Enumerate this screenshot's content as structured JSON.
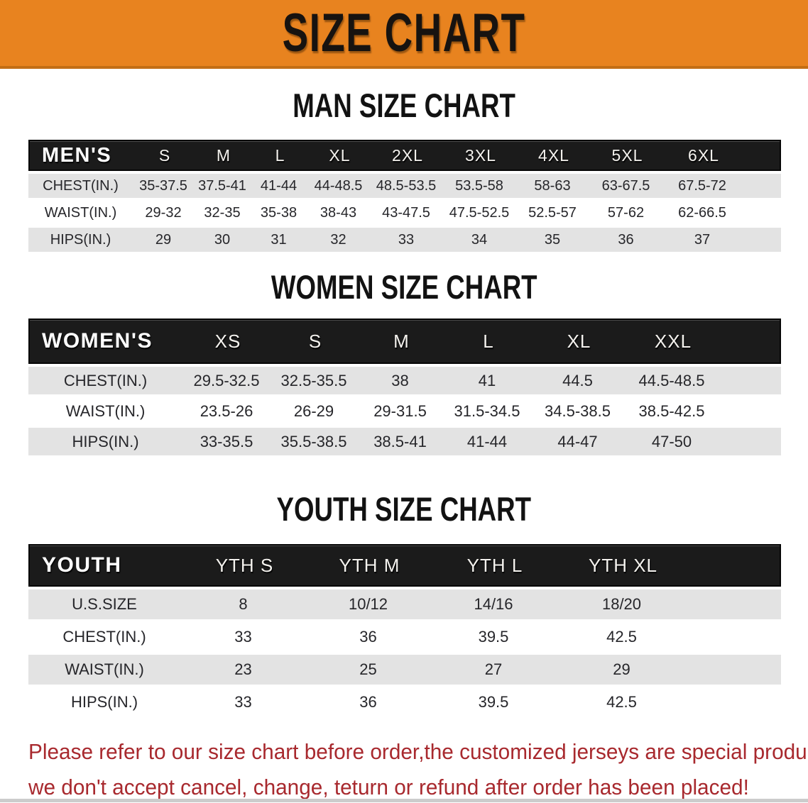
{
  "banner": {
    "title": "SIZE CHART"
  },
  "colors": {
    "banner_bg": "#E8831F",
    "banner_edge": "#C36E15",
    "header_bar": "#1B1B1B",
    "row_gray": "#E3E3E3",
    "note_red": "#A8292E"
  },
  "sections": [
    {
      "title": "MAN SIZE CHART",
      "header_label": "MEN'S",
      "columns": [
        "S",
        "M",
        "L",
        "XL",
        "2XL",
        "3XL",
        "4XL",
        "5XL",
        "6XL"
      ],
      "rows": [
        {
          "label": "CHEST(IN.)",
          "values": [
            "35-37.5",
            "37.5-41",
            "41-44",
            "44-48.5",
            "48.5-53.5",
            "53.5-58",
            "58-63",
            "63-67.5",
            "67.5-72"
          ]
        },
        {
          "label": "WAIST(IN.)",
          "values": [
            "29-32",
            "32-35",
            "35-38",
            "38-43",
            "43-47.5",
            "47.5-52.5",
            "52.5-57",
            "57-62",
            "62-66.5"
          ]
        },
        {
          "label": "HIPS(IN.)",
          "values": [
            "29",
            "30",
            "31",
            "32",
            "33",
            "34",
            "35",
            "36",
            "37"
          ]
        }
      ]
    },
    {
      "title": "WOMEN SIZE CHART",
      "header_label": "WOMEN'S",
      "columns": [
        "XS",
        "S",
        "M",
        "L",
        "XL",
        "XXL"
      ],
      "rows": [
        {
          "label": "CHEST(IN.)",
          "values": [
            "29.5-32.5",
            "32.5-35.5",
            "38",
            "41",
            "44.5",
            "44.5-48.5"
          ]
        },
        {
          "label": "WAIST(IN.)",
          "values": [
            "23.5-26",
            "26-29",
            "29-31.5",
            "31.5-34.5",
            "34.5-38.5",
            "38.5-42.5"
          ]
        },
        {
          "label": "HIPS(IN.)",
          "values": [
            "33-35.5",
            "35.5-38.5",
            "38.5-41",
            "41-44",
            "44-47",
            "47-50"
          ]
        }
      ]
    },
    {
      "title": "YOUTH SIZE CHART",
      "header_label": "YOUTH",
      "columns": [
        "YTH S",
        "YTH M",
        "YTH L",
        "YTH XL"
      ],
      "rows": [
        {
          "label": "U.S.SIZE",
          "values": [
            "8",
            "10/12",
            "14/16",
            "18/20"
          ]
        },
        {
          "label": "CHEST(IN.)",
          "values": [
            "33",
            "36",
            "39.5",
            "42.5"
          ]
        },
        {
          "label": "WAIST(IN.)",
          "values": [
            "23",
            "25",
            "27",
            "29"
          ]
        },
        {
          "label": "HIPS(IN.)",
          "values": [
            "33",
            "36",
            "39.5",
            "42.5"
          ]
        }
      ]
    }
  ],
  "footer_note": {
    "lines": [
      "Please refer to our size chart before order,the customized jerseys are special products,",
      "we don't accept cancel, change, teturn or refund after order has been placed!"
    ]
  }
}
